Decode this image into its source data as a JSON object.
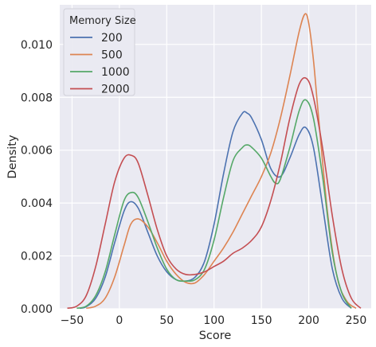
{
  "chart_data": {
    "type": "line",
    "xlabel": "Score",
    "ylabel": "Density",
    "xlim": [
      -63,
      266
    ],
    "ylim": [
      0,
      0.0115
    ],
    "xticks": [
      -50,
      0,
      50,
      100,
      150,
      200,
      250
    ],
    "xtick_labels": [
      "−50",
      "0",
      "50",
      "100",
      "150",
      "200",
      "250"
    ],
    "yticks": [
      0,
      0.002,
      0.004,
      0.006,
      0.008,
      0.01
    ],
    "ytick_labels": [
      "0.000",
      "0.002",
      "0.004",
      "0.006",
      "0.008",
      "0.010"
    ],
    "grid": true,
    "legend": {
      "title": "Memory Size",
      "placement": "top-left"
    },
    "series": [
      {
        "name": "200",
        "color": "#4c72b0",
        "x": [
          -42,
          -35,
          -25,
          -15,
          -5,
          5,
          12,
          20,
          30,
          40,
          50,
          60,
          70,
          80,
          90,
          100,
          110,
          120,
          130,
          135,
          140,
          150,
          160,
          170,
          180,
          190,
          197,
          205,
          215,
          225,
          235,
          245
        ],
        "y": [
          2e-05,
          8e-05,
          0.0004,
          0.0012,
          0.0025,
          0.0037,
          0.00405,
          0.0038,
          0.0029,
          0.002,
          0.0014,
          0.0011,
          0.00105,
          0.0012,
          0.0018,
          0.0032,
          0.0051,
          0.0067,
          0.0074,
          0.0074,
          0.0072,
          0.0064,
          0.0053,
          0.005,
          0.0057,
          0.0066,
          0.00685,
          0.0061,
          0.0038,
          0.0015,
          0.0004,
          2e-05
        ]
      },
      {
        "name": "500",
        "color": "#dd8452",
        "x": [
          -35,
          -25,
          -15,
          -5,
          5,
          12,
          20,
          30,
          40,
          50,
          60,
          70,
          80,
          90,
          100,
          110,
          120,
          130,
          140,
          150,
          160,
          170,
          180,
          190,
          196,
          200,
          205,
          210,
          220,
          230,
          240,
          250
        ],
        "y": [
          2e-05,
          0.0001,
          0.0004,
          0.0012,
          0.0024,
          0.0032,
          0.0034,
          0.0031,
          0.0025,
          0.0018,
          0.0013,
          0.001,
          0.00098,
          0.0013,
          0.0018,
          0.0023,
          0.0029,
          0.0036,
          0.0043,
          0.005,
          0.0059,
          0.0072,
          0.0088,
          0.0105,
          0.01115,
          0.0108,
          0.0094,
          0.0074,
          0.0036,
          0.0012,
          0.0003,
          2e-05
        ]
      },
      {
        "name": "1000",
        "color": "#55a868",
        "x": [
          -45,
          -35,
          -25,
          -15,
          -5,
          5,
          13,
          20,
          30,
          40,
          50,
          60,
          70,
          80,
          90,
          100,
          110,
          120,
          130,
          135,
          140,
          150,
          160,
          165,
          170,
          180,
          190,
          197,
          205,
          215,
          225,
          235,
          245
        ],
        "y": [
          2e-05,
          0.0001,
          0.0005,
          0.0014,
          0.0028,
          0.0041,
          0.0044,
          0.0042,
          0.0033,
          0.0023,
          0.0015,
          0.0011,
          0.00105,
          0.0011,
          0.0015,
          0.0026,
          0.0042,
          0.0056,
          0.0061,
          0.0062,
          0.0061,
          0.0057,
          0.005,
          0.00475,
          0.0049,
          0.0061,
          0.0075,
          0.0079,
          0.0072,
          0.0049,
          0.0021,
          0.0006,
          2e-05
        ]
      },
      {
        "name": "2000",
        "color": "#c44e52",
        "x": [
          -55,
          -45,
          -35,
          -25,
          -15,
          -5,
          5,
          13,
          20,
          30,
          40,
          50,
          60,
          70,
          80,
          90,
          100,
          110,
          120,
          130,
          140,
          150,
          160,
          170,
          180,
          190,
          198,
          205,
          215,
          225,
          235,
          245,
          255
        ],
        "y": [
          2e-05,
          0.0001,
          0.0005,
          0.0016,
          0.0032,
          0.0048,
          0.0057,
          0.0058,
          0.0055,
          0.0043,
          0.003,
          0.002,
          0.0015,
          0.0013,
          0.0013,
          0.0014,
          0.0016,
          0.0018,
          0.0021,
          0.0023,
          0.0026,
          0.0031,
          0.0041,
          0.0055,
          0.0072,
          0.0085,
          0.0087,
          0.008,
          0.006,
          0.0035,
          0.0015,
          0.0004,
          2e-05
        ]
      }
    ]
  }
}
